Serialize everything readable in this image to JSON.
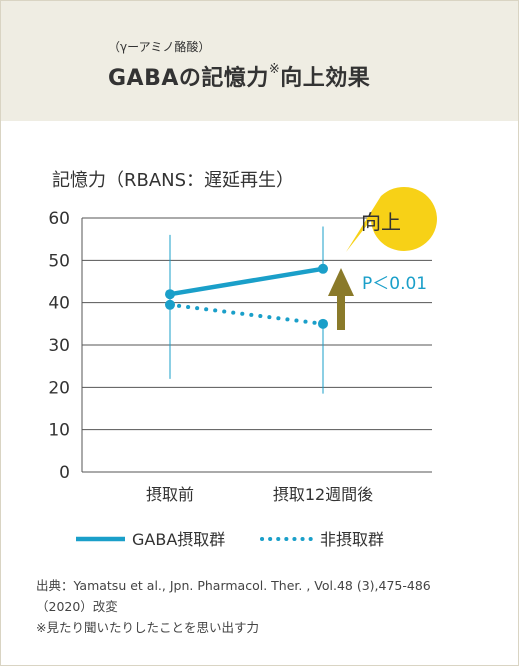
{
  "header": {
    "subtitle": "（γーアミノ酪酸）",
    "title_main": "GABAの記憶力",
    "title_mark": "※",
    "title_tail": "向上効果"
  },
  "chart_data": {
    "type": "line",
    "title": "記憶力（RBANS：遅延再生）",
    "categories": [
      "摂取前",
      "摂取12週間後"
    ],
    "ylim": [
      0,
      60
    ],
    "yticks": [
      0,
      10,
      20,
      30,
      40,
      50,
      60
    ],
    "grid": true,
    "series": [
      {
        "name": "GABA摂取群",
        "values": [
          42,
          48
        ],
        "style": "solid",
        "color": "#1a9fc9",
        "errors": [
          [
            22,
            56
          ],
          [
            null,
            58
          ]
        ]
      },
      {
        "name": "非摂取群",
        "values": [
          39.5,
          35
        ],
        "style": "dotted",
        "color": "#1a9fc9",
        "errors": [
          [
            null,
            null
          ],
          [
            18.5,
            null
          ]
        ]
      }
    ],
    "annotations": {
      "callout": "向上",
      "pvalue": "P＜0.01"
    },
    "legend_position": "bottom"
  },
  "colors": {
    "accent": "#1a9fc9",
    "arrow": "#8a7a2a",
    "callout": "#f7d117",
    "header_bg": "#efede3"
  },
  "source": {
    "line1": "出典：Yamatsu et al., Jpn. Pharmacol. Ther. , Vol.48 (3),475-486",
    "line2": "（2020）改変",
    "line3": "※見たり聞いたりしたことを思い出す力"
  }
}
